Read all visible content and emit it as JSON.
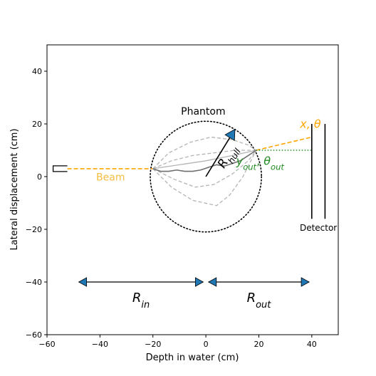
{
  "chart_data": {
    "type": "scatter",
    "xlabel": "Depth in water (cm)",
    "ylabel": "Lateral displacement (cm)",
    "xlim": [
      -60,
      50
    ],
    "ylim": [
      -60,
      50
    ],
    "xticks": [
      -60,
      -40,
      -20,
      0,
      20,
      40
    ],
    "yticks": [
      -60,
      -40,
      -20,
      0,
      20,
      40
    ],
    "grid": false,
    "phantom": {
      "label": "Phantom",
      "center": [
        0,
        0
      ],
      "radius": 21
    },
    "beam": {
      "label": "Beam",
      "source_x": -55,
      "from": [
        -55,
        3
      ],
      "to": [
        -20,
        3
      ]
    },
    "exit_line": {
      "from": [
        19,
        10
      ],
      "to": [
        40,
        15
      ]
    },
    "exit_ref_line": {
      "from": [
        19,
        10
      ],
      "to": [
        40,
        10
      ]
    },
    "hull_arrow": {
      "label": "R_hull",
      "from": [
        0,
        0
      ],
      "to": [
        11,
        18
      ]
    },
    "detector": {
      "label": "Detector",
      "planes_x": [
        40,
        45
      ],
      "y_range": [
        -16,
        20
      ]
    },
    "mlp_paths": [
      {
        "style": "dashed",
        "points": [
          [
            -20,
            3
          ],
          [
            -14,
            9
          ],
          [
            -6,
            13
          ],
          [
            2,
            15
          ],
          [
            10,
            14
          ],
          [
            16,
            12
          ],
          [
            19,
            10
          ]
        ]
      },
      {
        "style": "dashed",
        "points": [
          [
            -20,
            3
          ],
          [
            -13,
            6
          ],
          [
            -5,
            8
          ],
          [
            3,
            9
          ],
          [
            11,
            10
          ],
          [
            19,
            10
          ]
        ]
      },
      {
        "style": "dashed",
        "points": [
          [
            -20,
            3
          ],
          [
            -12,
            -1
          ],
          [
            -4,
            -4
          ],
          [
            3,
            -3
          ],
          [
            10,
            1
          ],
          [
            16,
            6
          ],
          [
            19,
            10
          ]
        ]
      },
      {
        "style": "dashed",
        "points": [
          [
            -20,
            3
          ],
          [
            -13,
            -4
          ],
          [
            -5,
            -9
          ],
          [
            4,
            -11
          ],
          [
            9,
            -7
          ],
          [
            14,
            0
          ],
          [
            19,
            10
          ]
        ]
      },
      {
        "style": "solid-light",
        "points": [
          [
            -20,
            3
          ],
          [
            -10,
            4.5
          ],
          [
            0,
            6
          ],
          [
            10,
            8
          ],
          [
            19,
            10
          ]
        ]
      },
      {
        "style": "solid-dark",
        "points": [
          [
            -20,
            3
          ],
          [
            -17,
            2
          ],
          [
            -14,
            2
          ],
          [
            -11,
            2.5
          ],
          [
            -8,
            2
          ],
          [
            -5,
            2
          ],
          [
            -2,
            2.5
          ],
          [
            1,
            3.5
          ],
          [
            4,
            4.5
          ],
          [
            7,
            4
          ],
          [
            10,
            5
          ],
          [
            13,
            6
          ],
          [
            16,
            8
          ],
          [
            19,
            10
          ]
        ]
      }
    ],
    "range_arrows": [
      {
        "label": "R_in",
        "from": -48,
        "to": -1,
        "y": -40
      },
      {
        "label": "R_out",
        "from": 1,
        "to": 39,
        "y": -40
      }
    ],
    "annotations": {
      "exit_position": "x, θ",
      "exit_fit": "y_out, θ_out"
    },
    "colors": {
      "beam": "#ffa500",
      "beam_label": "#f5bd40",
      "exit_fit": "#228b22",
      "arrow_fill": "#1f77b4",
      "path_light": "#b4b4b4",
      "path_dark": "#6f6f6f"
    }
  }
}
